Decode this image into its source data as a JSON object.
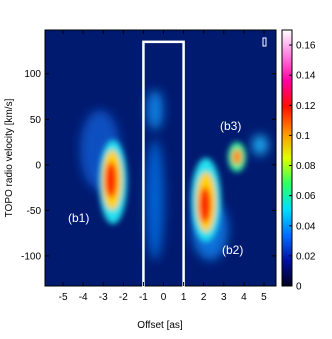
{
  "chart_data": {
    "type": "heatmap",
    "xlabel": "Offset [as]",
    "ylabel": "TOPO radio velocity [km/s]",
    "xlim": [
      -5.9,
      5.6
    ],
    "xticks": [
      -5,
      -4,
      -3,
      -2,
      -1,
      0,
      1,
      2,
      3,
      4,
      5
    ],
    "ylim": [
      -133,
      148
    ],
    "yticks": [
      -100,
      -50,
      0,
      50,
      100
    ],
    "clim": [
      0,
      0.17
    ],
    "cticks": [
      0,
      0.02,
      0.04,
      0.06,
      0.08,
      0.1,
      0.12,
      0.14,
      0.16
    ],
    "colormap": [
      "#000020",
      "#0010a0",
      "#0070ff",
      "#00e0ff",
      "#30ff60",
      "#e0ff00",
      "#ff9000",
      "#ff1000",
      "#ff00a0",
      "#ff80e0",
      "#ffffff"
    ],
    "box": {
      "x": [
        -1,
        1
      ],
      "y": [
        -135,
        135
      ]
    },
    "annotations": [
      "(b1)",
      "(b2)",
      "(b3)"
    ]
  }
}
